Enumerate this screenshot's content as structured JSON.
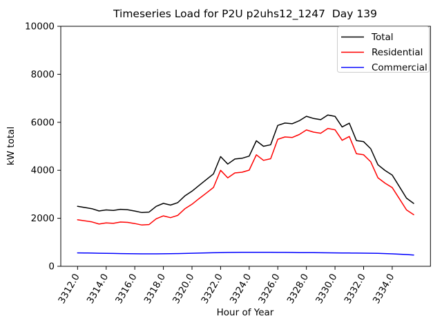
{
  "chart_data": {
    "type": "line",
    "title": "Timeseries Load for P2U p2uhs12_1247  Day 139",
    "xlabel": "Hour of Year",
    "ylabel": "kW total",
    "xlim": [
      3310.825,
      3336.675
    ],
    "ylim": [
      0,
      10000
    ],
    "grid": false,
    "legend_position": "upper right",
    "xticks": [
      3312,
      3314,
      3316,
      3318,
      3320,
      3322,
      3324,
      3326,
      3328,
      3330,
      3332,
      3334
    ],
    "xtick_labels": [
      "3312.0",
      "3314.0",
      "3316.0",
      "3318.0",
      "3320.0",
      "3322.0",
      "3324.0",
      "3326.0",
      "3328.0",
      "3330.0",
      "3332.0",
      "3334.0"
    ],
    "yticks": [
      0,
      2000,
      4000,
      6000,
      8000,
      10000
    ],
    "ytick_labels": [
      "0",
      "2000",
      "4000",
      "6000",
      "8000",
      "10000"
    ],
    "x": [
      3312.0,
      3312.5,
      3313.0,
      3313.5,
      3314.0,
      3314.5,
      3315.0,
      3315.5,
      3316.0,
      3316.5,
      3317.0,
      3317.5,
      3318.0,
      3318.5,
      3319.0,
      3319.5,
      3320.0,
      3320.5,
      3321.0,
      3321.5,
      3322.0,
      3322.5,
      3323.0,
      3323.5,
      3324.0,
      3324.5,
      3325.0,
      3325.5,
      3326.0,
      3326.5,
      3327.0,
      3327.5,
      3328.0,
      3328.5,
      3329.0,
      3329.5,
      3330.0,
      3330.5,
      3331.0,
      3331.5,
      3332.0,
      3332.5,
      3333.0,
      3333.5,
      3334.0,
      3334.5,
      3335.0,
      3335.5
    ],
    "series": [
      {
        "name": "Total",
        "color": "#000000",
        "values": [
          2500,
          2450,
          2400,
          2305,
          2350,
          2325,
          2375,
          2355,
          2302,
          2240,
          2260,
          2500,
          2622,
          2550,
          2650,
          2930,
          3130,
          3370,
          3610,
          3850,
          4570,
          4260,
          4470,
          4502,
          4590,
          5230,
          5000,
          5062,
          5870,
          5968,
          5940,
          6062,
          6250,
          6158,
          6110,
          6302,
          6248,
          5805,
          5962,
          5240,
          5193,
          4900,
          4230,
          3990,
          3800,
          3320,
          2840,
          2620
        ]
      },
      {
        "name": "Residential",
        "color": "#ff0000",
        "values": [
          1940,
          1895,
          1850,
          1760,
          1810,
          1790,
          1845,
          1830,
          1780,
          1720,
          1740,
          1980,
          2100,
          2025,
          2120,
          2395,
          2585,
          2820,
          3050,
          3285,
          4000,
          3685,
          3890,
          3920,
          4005,
          4645,
          4415,
          4480,
          5290,
          5390,
          5365,
          5490,
          5680,
          5590,
          5545,
          5740,
          5690,
          5250,
          5410,
          4690,
          4645,
          4355,
          3690,
          3460,
          3280,
          2815,
          2350,
          2150
        ]
      },
      {
        "name": "Commercial",
        "color": "#0000ff",
        "values": [
          560,
          555,
          550,
          545,
          540,
          535,
          530,
          525,
          522,
          520,
          520,
          520,
          522,
          525,
          530,
          535,
          545,
          550,
          560,
          565,
          570,
          575,
          580,
          582,
          585,
          585,
          585,
          582,
          580,
          578,
          575,
          572,
          570,
          568,
          565,
          562,
          558,
          555,
          552,
          550,
          548,
          545,
          540,
          530,
          520,
          505,
          490,
          470
        ]
      }
    ]
  }
}
